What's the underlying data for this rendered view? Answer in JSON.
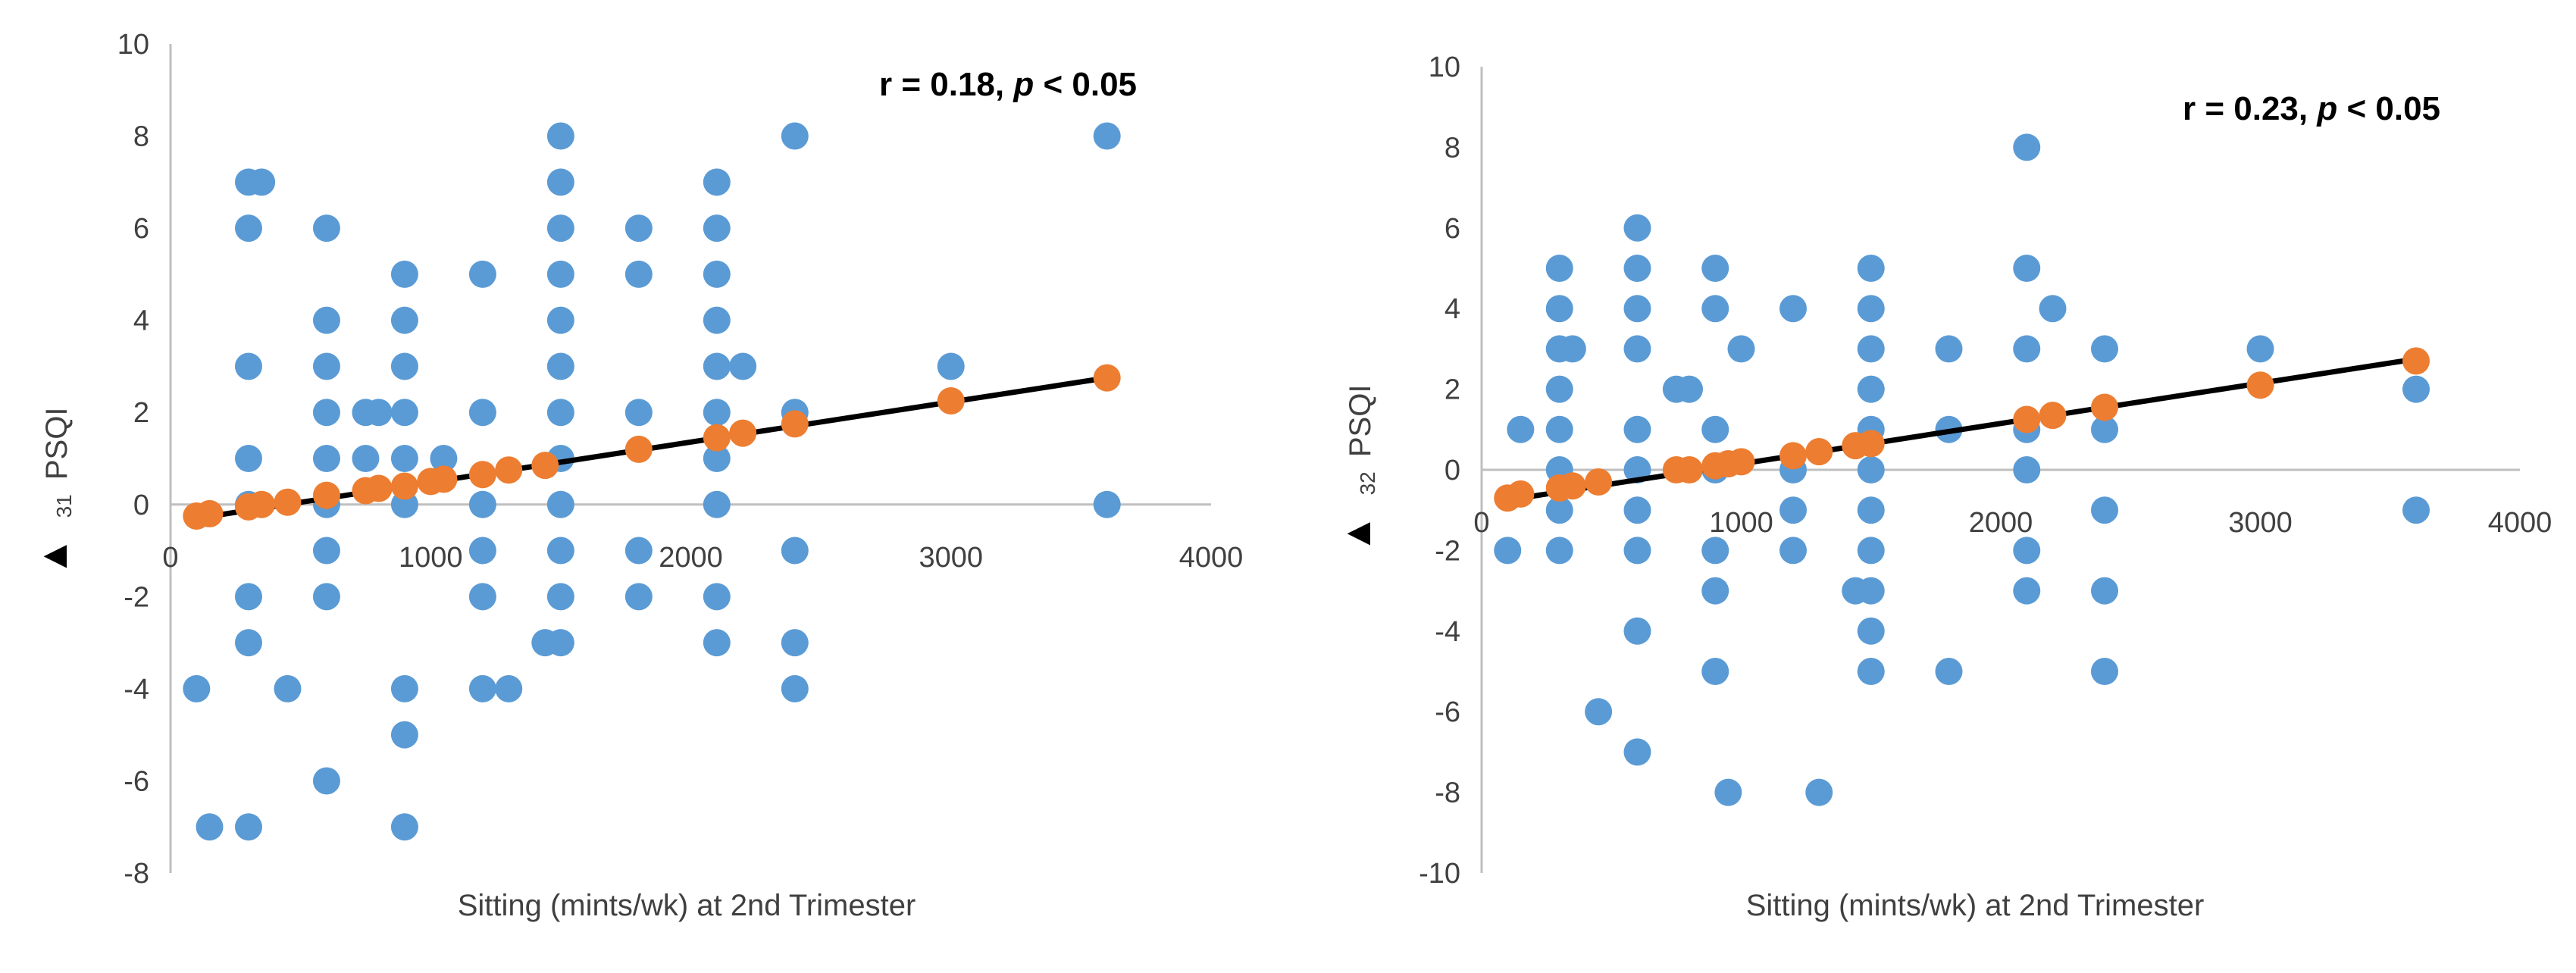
{
  "colors": {
    "observed": "#5B9BD5",
    "predicted": "#ED7D31",
    "trendline": "#000000",
    "axis": "#BFBFBF",
    "text": "#404040"
  },
  "chart_data": [
    {
      "type": "scatter",
      "xlabel": "Sitting (mints/wk) at 2nd Trimester",
      "ylabel_symbol": "▲",
      "ylabel_sub": "31",
      "ylabel_text": "PSQI",
      "annotation": {
        "prefix": "r = 0.18, ",
        "p_italic": "p",
        "suffix": " < 0.05"
      },
      "xlim": [
        0,
        4000
      ],
      "ylim": [
        -8,
        10
      ],
      "x_ticks": [
        0,
        1000,
        2000,
        3000,
        4000
      ],
      "y_ticks": [
        -8,
        -6,
        -4,
        -2,
        0,
        2,
        4,
        6,
        8,
        10
      ],
      "series": [
        {
          "name": "observed",
          "points": [
            [
              100,
              -4
            ],
            [
              150,
              -7
            ],
            [
              300,
              7
            ],
            [
              350,
              7
            ],
            [
              300,
              6
            ],
            [
              300,
              3
            ],
            [
              300,
              1
            ],
            [
              300,
              0
            ],
            [
              300,
              -2
            ],
            [
              300,
              -3
            ],
            [
              300,
              -7
            ],
            [
              450,
              -4
            ],
            [
              600,
              6
            ],
            [
              600,
              4
            ],
            [
              600,
              3
            ],
            [
              600,
              2
            ],
            [
              600,
              1
            ],
            [
              600,
              0
            ],
            [
              600,
              -1
            ],
            [
              600,
              -2
            ],
            [
              600,
              -6
            ],
            [
              750,
              2
            ],
            [
              750,
              1
            ],
            [
              800,
              2
            ],
            [
              900,
              5
            ],
            [
              900,
              4
            ],
            [
              900,
              3
            ],
            [
              900,
              2
            ],
            [
              900,
              1
            ],
            [
              900,
              0
            ],
            [
              900,
              -4
            ],
            [
              900,
              -5
            ],
            [
              900,
              -7
            ],
            [
              1050,
              1
            ],
            [
              1200,
              5
            ],
            [
              1200,
              2
            ],
            [
              1200,
              0
            ],
            [
              1200,
              -1
            ],
            [
              1200,
              -2
            ],
            [
              1200,
              -4
            ],
            [
              1300,
              -4
            ],
            [
              1440,
              -3
            ],
            [
              1500,
              8
            ],
            [
              1500,
              7
            ],
            [
              1500,
              6
            ],
            [
              1500,
              5
            ],
            [
              1500,
              4
            ],
            [
              1500,
              3
            ],
            [
              1500,
              2
            ],
            [
              1500,
              1
            ],
            [
              1500,
              0
            ],
            [
              1500,
              -1
            ],
            [
              1500,
              -2
            ],
            [
              1500,
              -3
            ],
            [
              1800,
              6
            ],
            [
              1800,
              5
            ],
            [
              1800,
              2
            ],
            [
              1800,
              -1
            ],
            [
              1800,
              -2
            ],
            [
              2100,
              7
            ],
            [
              2100,
              6
            ],
            [
              2100,
              5
            ],
            [
              2100,
              4
            ],
            [
              2100,
              3
            ],
            [
              2100,
              2
            ],
            [
              2100,
              1
            ],
            [
              2100,
              0
            ],
            [
              2100,
              -2
            ],
            [
              2100,
              -3
            ],
            [
              2200,
              3
            ],
            [
              2400,
              8
            ],
            [
              2400,
              2
            ],
            [
              2400,
              -1
            ],
            [
              2400,
              -3
            ],
            [
              2400,
              -4
            ],
            [
              3000,
              3
            ],
            [
              3600,
              8
            ],
            [
              3600,
              0
            ]
          ]
        },
        {
          "name": "predicted",
          "points": [
            [
              100,
              -0.25
            ],
            [
              150,
              -0.2
            ],
            [
              300,
              -0.05
            ],
            [
              350,
              0
            ],
            [
              450,
              0.05
            ],
            [
              600,
              0.2
            ],
            [
              750,
              0.3
            ],
            [
              800,
              0.35
            ],
            [
              900,
              0.4
            ],
            [
              1000,
              0.5
            ],
            [
              1050,
              0.55
            ],
            [
              1200,
              0.65
            ],
            [
              1300,
              0.75
            ],
            [
              1440,
              0.85
            ],
            [
              1800,
              1.2
            ],
            [
              2100,
              1.45
            ],
            [
              2200,
              1.55
            ],
            [
              2400,
              1.75
            ],
            [
              3000,
              2.25
            ],
            [
              3600,
              2.75
            ]
          ]
        }
      ],
      "trendline": [
        [
          100,
          -0.3
        ],
        [
          3600,
          2.75
        ]
      ]
    },
    {
      "type": "scatter",
      "xlabel": "Sitting (mints/wk) at 2nd Trimester",
      "ylabel_symbol": "▲",
      "ylabel_sub": "32",
      "ylabel_text": "PSQI",
      "annotation": {
        "prefix": "r = 0.23, ",
        "p_italic": "p",
        "suffix": " < 0.05"
      },
      "xlim": [
        0,
        4000
      ],
      "ylim": [
        -10,
        10
      ],
      "x_ticks": [
        0,
        1000,
        2000,
        3000,
        4000
      ],
      "y_ticks": [
        -10,
        -8,
        -6,
        -4,
        -2,
        0,
        2,
        4,
        6,
        8,
        10
      ],
      "series": [
        {
          "name": "observed",
          "points": [
            [
              100,
              -2
            ],
            [
              150,
              1
            ],
            [
              300,
              5
            ],
            [
              300,
              4
            ],
            [
              300,
              3
            ],
            [
              300,
              2
            ],
            [
              300,
              1
            ],
            [
              300,
              0
            ],
            [
              300,
              -1
            ],
            [
              300,
              -2
            ],
            [
              350,
              3
            ],
            [
              450,
              -6
            ],
            [
              600,
              6
            ],
            [
              600,
              5
            ],
            [
              600,
              4
            ],
            [
              600,
              3
            ],
            [
              600,
              1
            ],
            [
              600,
              0
            ],
            [
              600,
              -1
            ],
            [
              600,
              -2
            ],
            [
              600,
              -4
            ],
            [
              600,
              -7
            ],
            [
              750,
              2
            ],
            [
              800,
              2
            ],
            [
              900,
              5
            ],
            [
              900,
              4
            ],
            [
              900,
              1
            ],
            [
              900,
              0
            ],
            [
              900,
              -2
            ],
            [
              900,
              -3
            ],
            [
              900,
              -5
            ],
            [
              950,
              -8
            ],
            [
              1000,
              3
            ],
            [
              1200,
              4
            ],
            [
              1200,
              0
            ],
            [
              1200,
              -1
            ],
            [
              1200,
              -2
            ],
            [
              1300,
              -8
            ],
            [
              1440,
              -3
            ],
            [
              1500,
              5
            ],
            [
              1500,
              4
            ],
            [
              1500,
              3
            ],
            [
              1500,
              2
            ],
            [
              1500,
              1
            ],
            [
              1500,
              0
            ],
            [
              1500,
              -1
            ],
            [
              1500,
              -2
            ],
            [
              1500,
              -3
            ],
            [
              1500,
              -4
            ],
            [
              1500,
              -5
            ],
            [
              1800,
              3
            ],
            [
              1800,
              1
            ],
            [
              1800,
              -5
            ],
            [
              2100,
              8
            ],
            [
              2100,
              5
            ],
            [
              2100,
              3
            ],
            [
              2100,
              1
            ],
            [
              2100,
              0
            ],
            [
              2100,
              -2
            ],
            [
              2100,
              -3
            ],
            [
              2200,
              4
            ],
            [
              2400,
              3
            ],
            [
              2400,
              1
            ],
            [
              2400,
              -1
            ],
            [
              2400,
              -3
            ],
            [
              2400,
              -5
            ],
            [
              3000,
              3
            ],
            [
              3600,
              2
            ],
            [
              3600,
              -1
            ]
          ]
        },
        {
          "name": "predicted",
          "points": [
            [
              100,
              -0.7
            ],
            [
              150,
              -0.6
            ],
            [
              300,
              -0.45
            ],
            [
              350,
              -0.4
            ],
            [
              450,
              -0.3
            ],
            [
              750,
              0
            ],
            [
              800,
              0
            ],
            [
              900,
              0.1
            ],
            [
              950,
              0.15
            ],
            [
              1000,
              0.2
            ],
            [
              1200,
              0.35
            ],
            [
              1300,
              0.45
            ],
            [
              1440,
              0.6
            ],
            [
              1500,
              0.65
            ],
            [
              2100,
              1.25
            ],
            [
              2200,
              1.35
            ],
            [
              2400,
              1.55
            ],
            [
              3000,
              2.1
            ],
            [
              3600,
              2.7
            ]
          ]
        }
      ],
      "trendline": [
        [
          100,
          -0.75
        ],
        [
          3600,
          2.75
        ]
      ]
    }
  ]
}
